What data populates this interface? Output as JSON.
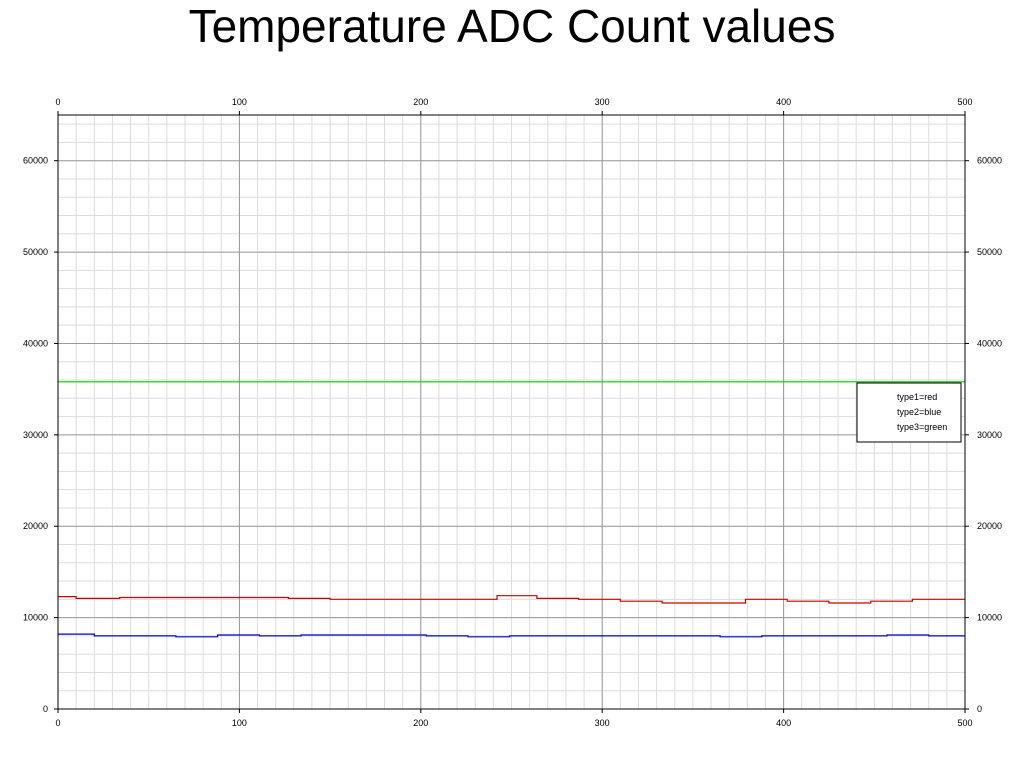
{
  "chart_data": {
    "type": "line",
    "title": "Temperature ADC Count values",
    "xlabel": "",
    "ylabel": "",
    "xlim": [
      0,
      500
    ],
    "ylim": [
      0,
      65000
    ],
    "x_ticks": [
      0,
      100,
      200,
      300,
      400,
      500
    ],
    "y_ticks": [
      0,
      10000,
      20000,
      30000,
      40000,
      50000,
      60000
    ],
    "x_minor_step": 10,
    "y_minor_step": 2000,
    "grid": true,
    "legend_position": "right",
    "legend": [
      "type1=red",
      "type2=blue",
      "type3=green"
    ],
    "series": [
      {
        "name": "type1=red",
        "color": "#cc0000",
        "points": [
          [
            0,
            12300
          ],
          [
            10,
            12300
          ],
          [
            10,
            12100
          ],
          [
            34,
            12100
          ],
          [
            34,
            12200
          ],
          [
            127,
            12200
          ],
          [
            127,
            12100
          ],
          [
            150,
            12100
          ],
          [
            150,
            12000
          ],
          [
            242,
            12000
          ],
          [
            242,
            12400
          ],
          [
            264,
            12400
          ],
          [
            264,
            12100
          ],
          [
            287,
            12100
          ],
          [
            287,
            12000
          ],
          [
            310,
            12000
          ],
          [
            310,
            11800
          ],
          [
            333,
            11800
          ],
          [
            333,
            11600
          ],
          [
            379,
            11600
          ],
          [
            379,
            12000
          ],
          [
            402,
            12000
          ],
          [
            402,
            11800
          ],
          [
            425,
            11800
          ],
          [
            425,
            11600
          ],
          [
            448,
            11600
          ],
          [
            448,
            11800
          ],
          [
            471,
            11800
          ],
          [
            471,
            12000
          ],
          [
            500,
            12000
          ]
        ]
      },
      {
        "name": "type2=blue",
        "color": "#0000cc",
        "points": [
          [
            0,
            8200
          ],
          [
            20,
            8200
          ],
          [
            20,
            8000
          ],
          [
            65,
            8000
          ],
          [
            65,
            7900
          ],
          [
            88,
            7900
          ],
          [
            88,
            8100
          ],
          [
            111,
            8100
          ],
          [
            111,
            8000
          ],
          [
            134,
            8000
          ],
          [
            134,
            8100
          ],
          [
            203,
            8100
          ],
          [
            203,
            8000
          ],
          [
            226,
            8000
          ],
          [
            226,
            7900
          ],
          [
            249,
            7900
          ],
          [
            249,
            8000
          ],
          [
            365,
            8000
          ],
          [
            365,
            7900
          ],
          [
            388,
            7900
          ],
          [
            388,
            8000
          ],
          [
            457,
            8000
          ],
          [
            457,
            8100
          ],
          [
            480,
            8100
          ],
          [
            480,
            8000
          ],
          [
            500,
            8000
          ]
        ]
      },
      {
        "name": "type3=green",
        "color": "#00cc00",
        "points": [
          [
            0,
            35800
          ],
          [
            500,
            35800
          ]
        ]
      }
    ]
  }
}
